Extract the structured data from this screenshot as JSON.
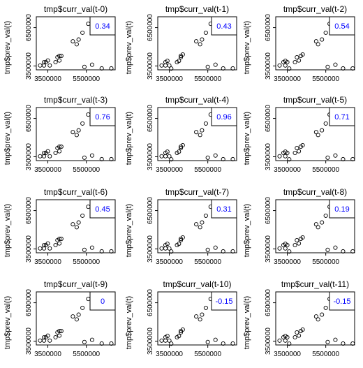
{
  "chart_data": {
    "type": "scatter",
    "layout": "4x3 grid of scatter panels",
    "xlabel_template": "tmp$curr_val(t-{lag})",
    "ylabel": "tmp$prev_val(t)",
    "x_ticks": [
      3500000,
      5500000
    ],
    "y_ticks": [
      3500000,
      6500000
    ],
    "xlim": [
      2900000,
      7000000
    ],
    "ylim": [
      3200000,
      7350000
    ],
    "corr_label_color": "#0000ff",
    "panels": [
      {
        "title": "tmp$curr_val(t-0)",
        "corr": "0.34",
        "x": [
          3100000,
          3300000,
          3300000,
          3400000,
          3500000,
          3600000,
          3900000,
          4000000,
          4100000,
          4100000,
          4200000,
          4800000,
          5000000,
          5100000,
          5300000,
          5400000,
          5600000,
          5800000,
          6300000,
          6800000
        ],
        "y": [
          3540000,
          3790000,
          3540000,
          3800000,
          3930000,
          3540000,
          3800000,
          4180000,
          3930000,
          4290000,
          4290000,
          5430000,
          5200000,
          5570000,
          6100000,
          3430000,
          6800000,
          3600000,
          3310000,
          3310000
        ]
      },
      {
        "title": "tmp$curr_val(t-1)",
        "corr": "0.43",
        "x": [
          3100000,
          3300000,
          3300000,
          3400000,
          3500000,
          3600000,
          3900000,
          4000000,
          4100000,
          4100000,
          4200000,
          4900000,
          5100000,
          5200000,
          5400000,
          5500000,
          5650000,
          5900000,
          6300000,
          6800000
        ],
        "y": [
          3540000,
          3800000,
          3540000,
          3900000,
          3540000,
          3300000,
          3800000,
          3900000,
          4180000,
          4290000,
          4400000,
          5430000,
          5200000,
          5570000,
          6100000,
          3430000,
          6800000,
          3600000,
          3310000,
          3310000
        ]
      },
      {
        "title": "tmp$curr_val(t-2)",
        "corr": "0.54",
        "x": [
          3100000,
          3300000,
          3400000,
          3400000,
          3500000,
          3600000,
          3900000,
          4000000,
          4100000,
          4200000,
          4300000,
          5000000,
          5100000,
          5300000,
          5500000,
          5600000,
          5700000,
          6000000,
          6400000,
          6900000
        ],
        "y": [
          3540000,
          3800000,
          3540000,
          3900000,
          3800000,
          3300000,
          3800000,
          4180000,
          3930000,
          4290000,
          4400000,
          5430000,
          5200000,
          5570000,
          6100000,
          3430000,
          6800000,
          3600000,
          3310000,
          3310000
        ]
      },
      {
        "title": "tmp$curr_val(t-3)",
        "corr": "0.76",
        "x": [
          3100000,
          3300000,
          3300000,
          3400000,
          3500000,
          3600000,
          3900000,
          4000000,
          4100000,
          4100000,
          4200000,
          4800000,
          5000000,
          5100000,
          5300000,
          5400000,
          5600000,
          5800000,
          6300000,
          6800000
        ],
        "y": [
          3540000,
          3790000,
          3540000,
          3800000,
          3930000,
          3540000,
          3800000,
          4180000,
          3930000,
          4290000,
          4290000,
          5430000,
          5200000,
          5570000,
          6100000,
          3430000,
          6800000,
          3600000,
          3310000,
          3310000
        ]
      },
      {
        "title": "tmp$curr_val(t-4)",
        "corr": "0.96",
        "x": [
          3100000,
          3300000,
          3300000,
          3400000,
          3500000,
          3600000,
          3900000,
          4000000,
          4100000,
          4100000,
          4200000,
          4900000,
          5100000,
          5200000,
          5400000,
          5500000,
          5650000,
          5900000,
          6300000,
          6800000
        ],
        "y": [
          3540000,
          3800000,
          3540000,
          3900000,
          3540000,
          3300000,
          3800000,
          3900000,
          4180000,
          4290000,
          4400000,
          5430000,
          5200000,
          5570000,
          6100000,
          3430000,
          6800000,
          3600000,
          3310000,
          3310000
        ]
      },
      {
        "title": "tmp$curr_val(t-5)",
        "corr": "0.71",
        "x": [
          3100000,
          3300000,
          3400000,
          3400000,
          3500000,
          3600000,
          3900000,
          4000000,
          4100000,
          4200000,
          4300000,
          5000000,
          5100000,
          5300000,
          5500000,
          5600000,
          5700000,
          6000000,
          6400000,
          6900000
        ],
        "y": [
          3540000,
          3800000,
          3540000,
          3900000,
          3800000,
          3300000,
          3800000,
          4180000,
          3930000,
          4290000,
          4400000,
          5430000,
          5200000,
          5570000,
          6100000,
          3430000,
          6800000,
          3600000,
          3310000,
          3310000
        ]
      },
      {
        "title": "tmp$curr_val(t-6)",
        "corr": "0.45",
        "x": [
          3100000,
          3300000,
          3300000,
          3400000,
          3500000,
          3600000,
          3900000,
          4000000,
          4100000,
          4100000,
          4200000,
          4800000,
          5000000,
          5100000,
          5300000,
          5400000,
          5600000,
          5800000,
          6300000,
          6800000
        ],
        "y": [
          3540000,
          3790000,
          3540000,
          3800000,
          3930000,
          3540000,
          3800000,
          4180000,
          3930000,
          4290000,
          4290000,
          5430000,
          5200000,
          5570000,
          6100000,
          3430000,
          6800000,
          3600000,
          3310000,
          3310000
        ]
      },
      {
        "title": "tmp$curr_val(t-7)",
        "corr": "0.31",
        "x": [
          3100000,
          3300000,
          3300000,
          3400000,
          3500000,
          3600000,
          3900000,
          4000000,
          4100000,
          4100000,
          4200000,
          4900000,
          5100000,
          5200000,
          5400000,
          5500000,
          5650000,
          5900000,
          6300000,
          6800000
        ],
        "y": [
          3540000,
          3800000,
          3540000,
          3900000,
          3540000,
          3300000,
          3800000,
          3900000,
          4180000,
          4290000,
          4400000,
          5430000,
          5200000,
          5570000,
          6100000,
          3430000,
          6800000,
          3600000,
          3310000,
          3310000
        ]
      },
      {
        "title": "tmp$curr_val(t-8)",
        "corr": "0.19",
        "x": [
          3100000,
          3300000,
          3400000,
          3400000,
          3500000,
          3600000,
          3900000,
          4000000,
          4100000,
          4200000,
          4300000,
          5000000,
          5100000,
          5300000,
          5500000,
          5600000,
          5700000,
          6000000,
          6400000,
          6900000
        ],
        "y": [
          3540000,
          3800000,
          3540000,
          3900000,
          3800000,
          3300000,
          3800000,
          4180000,
          3930000,
          4290000,
          4400000,
          5430000,
          5200000,
          5570000,
          6100000,
          3430000,
          6800000,
          3600000,
          3310000,
          3310000
        ]
      },
      {
        "title": "tmp$curr_val(t-9)",
        "corr": "0",
        "x": [
          3100000,
          3300000,
          3300000,
          3400000,
          3500000,
          3600000,
          3900000,
          4000000,
          4100000,
          4100000,
          4200000,
          4800000,
          5000000,
          5100000,
          5300000,
          5400000,
          5600000,
          5800000,
          6300000,
          6800000
        ],
        "y": [
          3540000,
          3790000,
          3540000,
          3800000,
          3930000,
          3540000,
          3800000,
          4180000,
          3930000,
          4290000,
          4290000,
          5430000,
          5200000,
          5570000,
          6100000,
          3430000,
          6800000,
          3600000,
          3310000,
          3310000
        ]
      },
      {
        "title": "tmp$curr_val(t-10)",
        "corr": "-0.15",
        "x": [
          3100000,
          3300000,
          3300000,
          3400000,
          3500000,
          3600000,
          3900000,
          4000000,
          4100000,
          4100000,
          4200000,
          4900000,
          5100000,
          5200000,
          5400000,
          5500000,
          5650000,
          5900000,
          6300000,
          6800000
        ],
        "y": [
          3540000,
          3800000,
          3540000,
          3900000,
          3540000,
          3300000,
          3800000,
          3900000,
          4180000,
          4290000,
          4400000,
          5430000,
          5200000,
          5570000,
          6100000,
          3430000,
          6800000,
          3600000,
          3310000,
          3310000
        ]
      },
      {
        "title": "tmp$curr_val(t-11)",
        "corr": "-0.15",
        "x": [
          3100000,
          3300000,
          3400000,
          3400000,
          3500000,
          3600000,
          3900000,
          4000000,
          4100000,
          4200000,
          4300000,
          5000000,
          5100000,
          5300000,
          5500000,
          5600000,
          5700000,
          6000000,
          6400000,
          6900000
        ],
        "y": [
          3540000,
          3800000,
          3540000,
          3900000,
          3800000,
          3300000,
          3800000,
          4180000,
          3930000,
          4290000,
          4400000,
          5430000,
          5200000,
          5570000,
          6100000,
          3430000,
          6800000,
          3600000,
          3310000,
          3310000
        ]
      }
    ]
  }
}
